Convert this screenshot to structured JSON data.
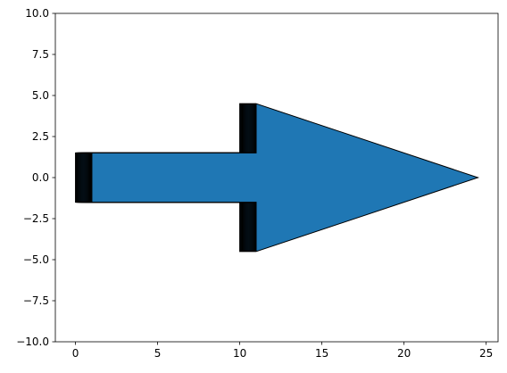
{
  "chart_data": {
    "type": "area",
    "title": "",
    "xlabel": "",
    "ylabel": "",
    "xlim": [
      -1.225,
      25.725
    ],
    "ylim": [
      -10,
      10
    ],
    "grid": false,
    "xticks": [
      {
        "value": 0,
        "label": "0"
      },
      {
        "value": 5,
        "label": "5"
      },
      {
        "value": 10,
        "label": "10"
      },
      {
        "value": 15,
        "label": "15"
      },
      {
        "value": 20,
        "label": "20"
      },
      {
        "value": 25,
        "label": "25"
      }
    ],
    "yticks": [
      {
        "value": -10,
        "label": "−10.0"
      },
      {
        "value": -7.5,
        "label": "−7.5"
      },
      {
        "value": -5,
        "label": "−5.0"
      },
      {
        "value": -2.5,
        "label": "−2.5"
      },
      {
        "value": 0,
        "label": "0.0"
      },
      {
        "value": 2.5,
        "label": "2.5"
      },
      {
        "value": 5,
        "label": "5.0"
      },
      {
        "value": 7.5,
        "label": "7.5"
      },
      {
        "value": 10,
        "label": "10.0"
      }
    ],
    "arrow": {
      "fill_color": "#1f77b4",
      "edge_color": "#000000",
      "tail_x_start": 0,
      "tail_x_end": 1,
      "head_x_start": 10,
      "head_x_end": 11,
      "tip_x": 24.5,
      "shaft_half_width": 1.5,
      "head_half_width": 4.5,
      "layer_count": 20
    }
  }
}
